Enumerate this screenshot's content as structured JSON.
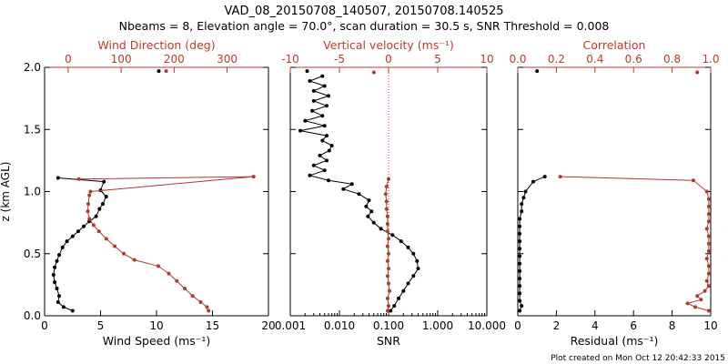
{
  "title_line1": "VAD_08_20150708_140507, 20150708.140525",
  "title_line2": "Nbeams = 8, Elevation angle = 70.0°, scan duration = 30.5 s, SNR Threshold = 0.008",
  "footer": "Plot created on Mon Oct 12 20:42:33 2015",
  "colors": {
    "black": "#000000",
    "red": "#b03a2e",
    "axis_red": "#c0392b"
  },
  "chart_data": [
    {
      "type": "line",
      "ylabel": "z (km AGL)",
      "ylim": [
        0,
        2
      ],
      "y_ticks": [
        "0.0",
        "0.5",
        "1.0",
        "1.5",
        "2.0"
      ],
      "bottom_axis": {
        "label": "Wind Speed (ms⁻¹)",
        "lim": [
          0,
          20
        ],
        "ticks": [
          {
            "v": 0,
            "t": "0"
          },
          {
            "v": 5,
            "t": "5"
          },
          {
            "v": 10,
            "t": "10"
          },
          {
            "v": 15,
            "t": "15"
          },
          {
            "v": 20,
            "t": "20"
          }
        ]
      },
      "top_axis": {
        "label": "Wind Direction (deg)",
        "lim": [
          -44.5,
          378
        ],
        "ticks": [
          {
            "v": 0,
            "t": "0"
          },
          {
            "v": 100,
            "t": "100"
          },
          {
            "v": 200,
            "t": "200"
          },
          {
            "v": 300,
            "t": "300"
          }
        ]
      },
      "series": [
        {
          "name": "Wind Speed",
          "color": "black",
          "axis": "bottom",
          "points": [
            [
              10.2,
              1.97
            ],
            [
              1.2,
              1.11
            ],
            [
              5.3,
              1.08
            ],
            [
              5.0,
              1.01
            ],
            [
              5.5,
              0.96
            ],
            [
              5.2,
              0.9
            ],
            [
              4.9,
              0.86
            ],
            [
              4.6,
              0.8
            ],
            [
              4.0,
              0.76
            ],
            [
              3.5,
              0.72
            ],
            [
              3.0,
              0.68
            ],
            [
              2.5,
              0.64
            ],
            [
              2.0,
              0.6
            ],
            [
              1.6,
              0.55
            ],
            [
              1.3,
              0.49
            ],
            [
              1.1,
              0.44
            ],
            [
              0.9,
              0.39
            ],
            [
              0.8,
              0.33
            ],
            [
              0.9,
              0.27
            ],
            [
              1.1,
              0.22
            ],
            [
              1.3,
              0.16
            ],
            [
              1.2,
              0.11
            ],
            [
              1.7,
              0.07
            ],
            [
              2.5,
              0.04
            ]
          ]
        },
        {
          "name": "Wind Direction",
          "color": "red",
          "axis": "top",
          "points": [
            [
              185,
              1.97
            ],
            [
              20,
              1.1
            ],
            [
              350,
              1.12
            ],
            [
              42,
              1.0
            ],
            [
              40,
              0.97
            ],
            [
              38,
              0.9
            ],
            [
              37,
              0.84
            ],
            [
              40,
              0.78
            ],
            [
              48,
              0.73
            ],
            [
              58,
              0.68
            ],
            [
              72,
              0.62
            ],
            [
              88,
              0.56
            ],
            [
              105,
              0.5
            ],
            [
              125,
              0.45
            ],
            [
              170,
              0.4
            ],
            [
              190,
              0.34
            ],
            [
              205,
              0.28
            ],
            [
              220,
              0.22
            ],
            [
              235,
              0.16
            ],
            [
              250,
              0.11
            ],
            [
              262,
              0.07
            ],
            [
              265,
              0.04
            ]
          ]
        }
      ]
    },
    {
      "type": "line",
      "ylim": [
        0,
        2
      ],
      "bottom_axis": {
        "label": "SNR",
        "scale": "log",
        "lim": [
          0.001,
          10
        ],
        "ticks": [
          {
            "v": 0.001,
            "t": "0.001"
          },
          {
            "v": 0.01,
            "t": "0.010"
          },
          {
            "v": 0.1,
            "t": "0.100"
          },
          {
            "v": 1,
            "t": "1.000"
          },
          {
            "v": 10,
            "t": "10.000"
          }
        ]
      },
      "top_axis": {
        "label": "Vertical velocity (ms⁻¹)",
        "lim": [
          -10,
          10
        ],
        "ticks": [
          {
            "v": -10,
            "t": "-10"
          },
          {
            "v": -5,
            "t": "-5"
          },
          {
            "v": 0,
            "t": "0"
          },
          {
            "v": 5,
            "t": "5"
          },
          {
            "v": 10,
            "t": "10"
          }
        ]
      },
      "reference_line": {
        "axis": "top",
        "value": 0,
        "style": "dotted"
      },
      "series": [
        {
          "name": "SNR",
          "color": "black",
          "axis": "bottom",
          "points": [
            [
              0.0022,
              1.97
            ],
            [
              0.0045,
              1.93
            ],
            [
              0.0025,
              1.89
            ],
            [
              0.005,
              1.85
            ],
            [
              0.003,
              1.81
            ],
            [
              0.006,
              1.77
            ],
            [
              0.003,
              1.73
            ],
            [
              0.0055,
              1.69
            ],
            [
              0.0028,
              1.65
            ],
            [
              0.0045,
              1.61
            ],
            [
              0.002,
              1.57
            ],
            [
              0.005,
              1.53
            ],
            [
              0.0016,
              1.49
            ],
            [
              0.0055,
              1.45
            ],
            [
              0.0045,
              1.41
            ],
            [
              0.007,
              1.37
            ],
            [
              0.0062,
              1.33
            ],
            [
              0.004,
              1.29
            ],
            [
              0.0055,
              1.25
            ],
            [
              0.003,
              1.21
            ],
            [
              0.005,
              1.17
            ],
            [
              0.0025,
              1.13
            ],
            [
              0.006,
              1.09
            ],
            [
              0.018,
              1.06
            ],
            [
              0.012,
              1.02
            ],
            [
              0.025,
              0.98
            ],
            [
              0.04,
              0.93
            ],
            [
              0.035,
              0.88
            ],
            [
              0.045,
              0.84
            ],
            [
              0.038,
              0.8
            ],
            [
              0.05,
              0.75
            ],
            [
              0.07,
              0.7
            ],
            [
              0.12,
              0.65
            ],
            [
              0.18,
              0.6
            ],
            [
              0.25,
              0.55
            ],
            [
              0.32,
              0.5
            ],
            [
              0.38,
              0.44
            ],
            [
              0.4,
              0.38
            ],
            [
              0.32,
              0.32
            ],
            [
              0.25,
              0.26
            ],
            [
              0.2,
              0.2
            ],
            [
              0.16,
              0.14
            ],
            [
              0.13,
              0.08
            ],
            [
              0.11,
              0.04
            ]
          ]
        },
        {
          "name": "Vertical velocity",
          "color": "red",
          "axis": "top",
          "points": [
            [
              -1.5,
              1.96
            ],
            [
              0.0,
              1.1
            ],
            [
              -0.2,
              1.04
            ],
            [
              -0.3,
              0.98
            ],
            [
              -0.2,
              0.92
            ],
            [
              -0.2,
              0.86
            ],
            [
              -0.1,
              0.8
            ],
            [
              -0.1,
              0.74
            ],
            [
              -0.1,
              0.68
            ],
            [
              0.0,
              0.62
            ],
            [
              -0.1,
              0.56
            ],
            [
              0.0,
              0.5
            ],
            [
              -0.1,
              0.44
            ],
            [
              0.0,
              0.38
            ],
            [
              -0.1,
              0.32
            ],
            [
              0.0,
              0.26
            ],
            [
              0.1,
              0.2
            ],
            [
              -0.1,
              0.14
            ],
            [
              0.0,
              0.08
            ],
            [
              -0.1,
              0.04
            ]
          ]
        }
      ]
    },
    {
      "type": "line",
      "ylim": [
        0,
        2
      ],
      "bottom_axis": {
        "label": "Residual (ms⁻¹)",
        "lim": [
          0,
          10
        ],
        "ticks": [
          {
            "v": 0,
            "t": "0"
          },
          {
            "v": 2,
            "t": "2"
          },
          {
            "v": 4,
            "t": "4"
          },
          {
            "v": 6,
            "t": "6"
          },
          {
            "v": 8,
            "t": "8"
          },
          {
            "v": 10,
            "t": "10"
          }
        ]
      },
      "top_axis": {
        "label": "Correlation",
        "lim": [
          0,
          1
        ],
        "ticks": [
          {
            "v": 0,
            "t": "0.0"
          },
          {
            "v": 0.2,
            "t": "0.2"
          },
          {
            "v": 0.4,
            "t": "0.4"
          },
          {
            "v": 0.6,
            "t": "0.6"
          },
          {
            "v": 0.8,
            "t": "0.8"
          },
          {
            "v": 1,
            "t": "1.0"
          }
        ]
      },
      "series": [
        {
          "name": "Residual",
          "color": "black",
          "axis": "bottom",
          "points": [
            [
              1.0,
              1.97
            ],
            [
              1.4,
              1.12
            ],
            [
              0.8,
              1.08
            ],
            [
              0.4,
              1.0
            ],
            [
              0.3,
              0.95
            ],
            [
              0.2,
              0.9
            ],
            [
              0.2,
              0.84
            ],
            [
              0.1,
              0.78
            ],
            [
              0.1,
              0.72
            ],
            [
              0.1,
              0.66
            ],
            [
              0.1,
              0.6
            ],
            [
              0.1,
              0.54
            ],
            [
              0.1,
              0.48
            ],
            [
              0.1,
              0.42
            ],
            [
              0.1,
              0.36
            ],
            [
              0.1,
              0.3
            ],
            [
              0.1,
              0.24
            ],
            [
              0.1,
              0.18
            ],
            [
              0.1,
              0.12
            ],
            [
              0.2,
              0.08
            ],
            [
              0.1,
              0.04
            ]
          ]
        },
        {
          "name": "Correlation",
          "color": "red",
          "axis": "top",
          "points": [
            [
              0.93,
              1.96
            ],
            [
              0.22,
              1.12
            ],
            [
              0.91,
              1.09
            ],
            [
              0.98,
              1.0
            ],
            [
              0.99,
              0.94
            ],
            [
              0.99,
              0.88
            ],
            [
              0.99,
              0.82
            ],
            [
              0.99,
              0.76
            ],
            [
              0.98,
              0.7
            ],
            [
              0.99,
              0.64
            ],
            [
              0.99,
              0.58
            ],
            [
              0.99,
              0.52
            ],
            [
              0.98,
              0.46
            ],
            [
              0.99,
              0.4
            ],
            [
              0.99,
              0.34
            ],
            [
              0.98,
              0.28
            ],
            [
              0.99,
              0.24
            ],
            [
              0.97,
              0.2
            ],
            [
              0.93,
              0.16
            ],
            [
              0.95,
              0.13
            ],
            [
              0.88,
              0.1
            ],
            [
              0.92,
              0.07
            ],
            [
              0.99,
              0.04
            ]
          ]
        }
      ]
    }
  ]
}
